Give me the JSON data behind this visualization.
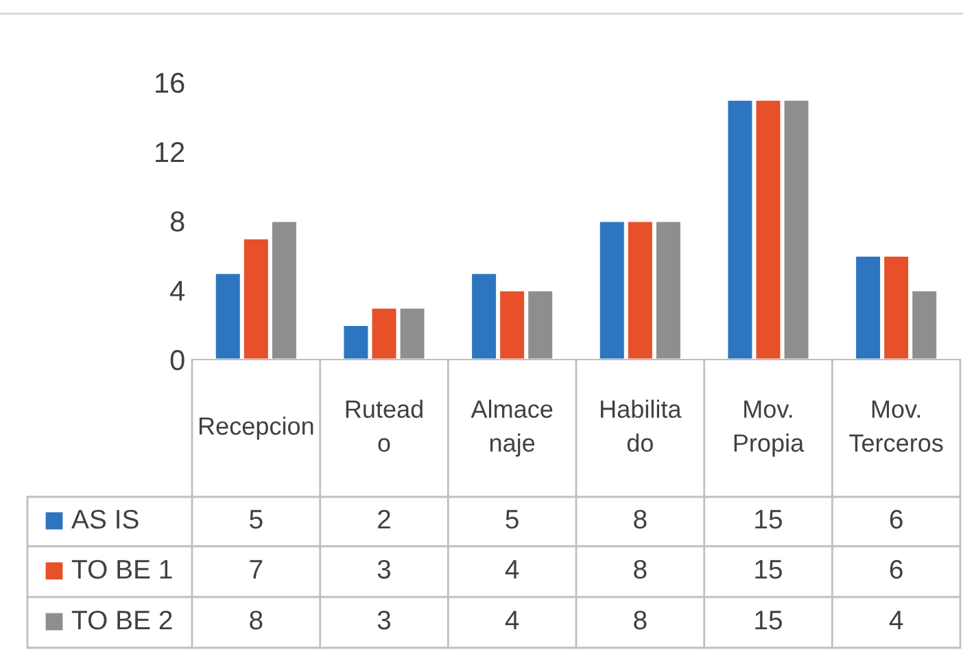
{
  "chart_data": {
    "type": "bar",
    "categories": [
      "Recepcion",
      "Rutead o",
      "Almace naje",
      "Habilita do",
      "Mov. Propia",
      "Mov. Terceros"
    ],
    "series": [
      {
        "name": "AS IS",
        "color": "#2e75c0",
        "values": [
          5,
          2,
          5,
          8,
          15,
          6
        ]
      },
      {
        "name": "TO BE 1",
        "color": "#e8502a",
        "values": [
          7,
          3,
          4,
          8,
          15,
          6
        ]
      },
      {
        "name": "TO BE 2",
        "color": "#8e8e8e",
        "values": [
          8,
          3,
          4,
          8,
          15,
          4
        ]
      }
    ],
    "ylim": [
      0,
      16
    ],
    "yticks": [
      0,
      4,
      8,
      12,
      16
    ],
    "grid": false,
    "legend": "bottom",
    "data_labels": true
  }
}
